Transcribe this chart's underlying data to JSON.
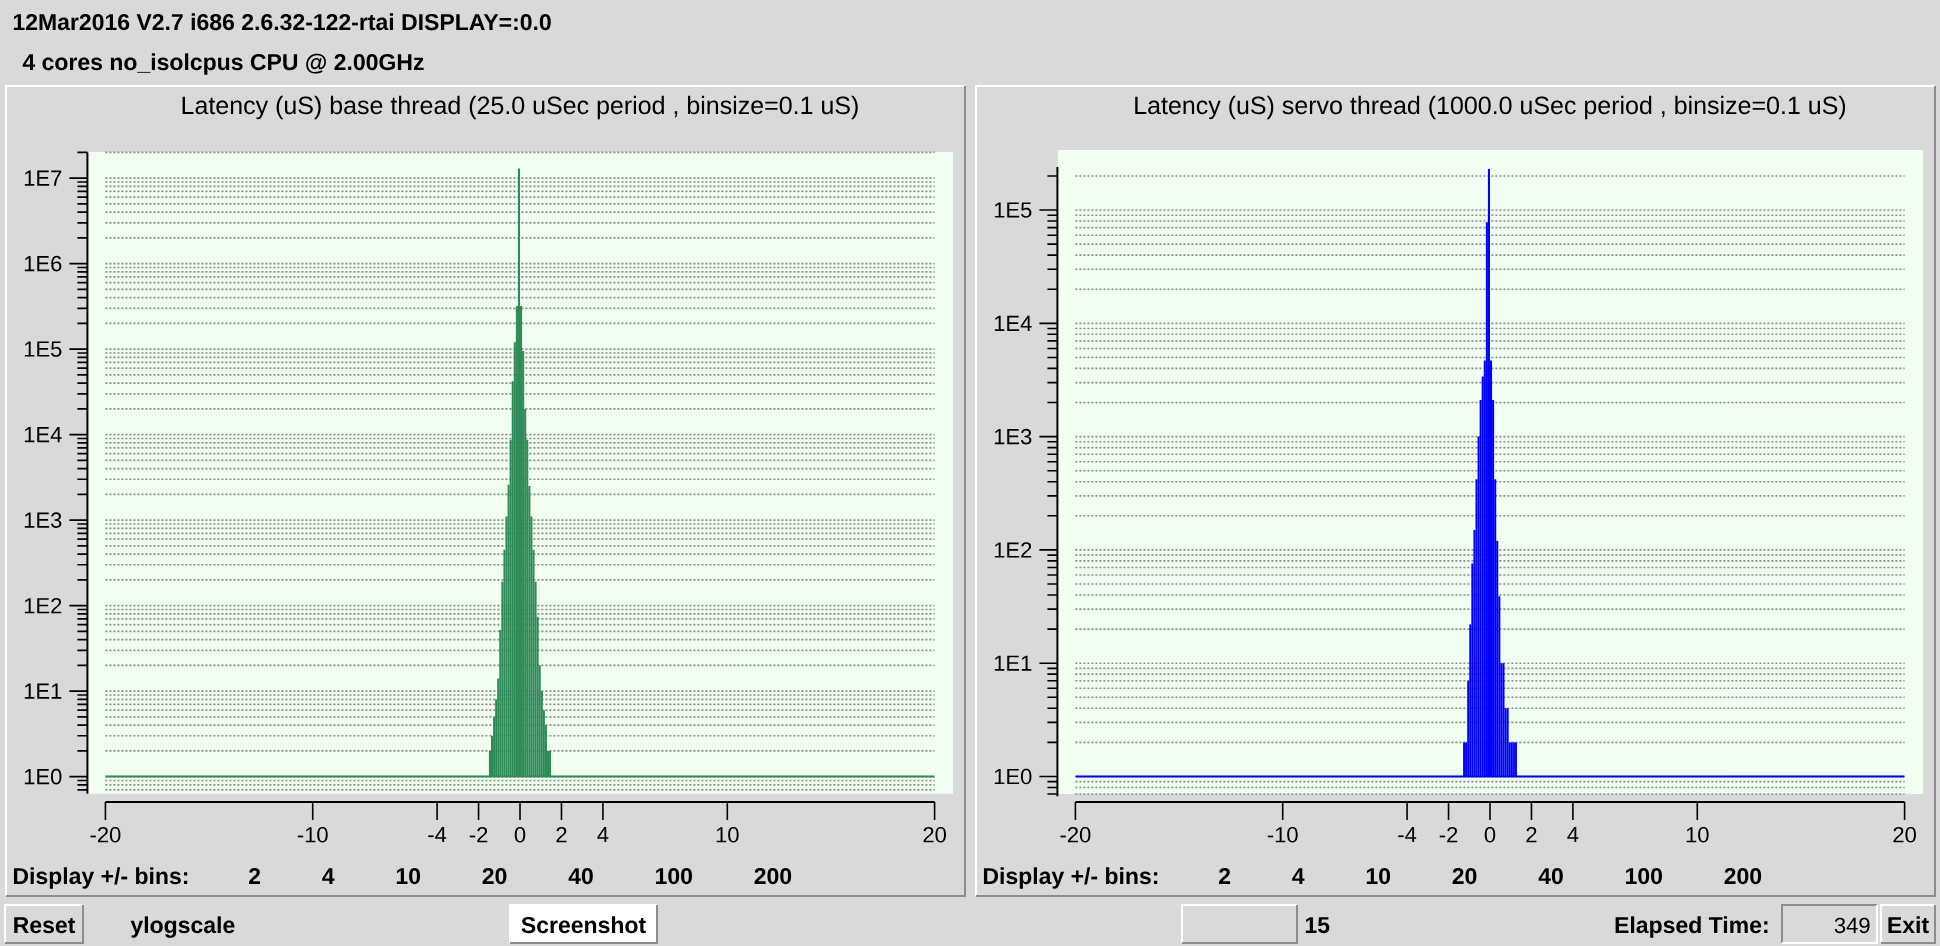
{
  "chart_data": [
    {
      "type": "other",
      "title": "12Mar2016 V2.7 i686 2.6.32-122-rtai DISPLAY=:0.0",
      "subtitle": "4 cores no_isolcpus CPU @ 2.00GHz"
    },
    {
      "type": "histogram",
      "title": "Latency (uS) base thread (25.0 uSec period , binsize=0.1 uS)",
      "color": "#2e8b57",
      "log": "y",
      "grid": "y",
      "bins": [
        -1.5,
        -1.4,
        -1.3,
        -1.2,
        -1.1,
        -1.0,
        -0.9,
        -0.8,
        -0.7,
        -0.6,
        -0.5,
        -0.4,
        -0.3,
        -0.2,
        -0.1,
        0,
        0.1,
        0.2,
        0.3,
        0.4,
        0.5,
        0.6,
        0.7,
        0.8,
        0.9,
        1.0,
        1.1,
        1.2,
        1.3,
        1.4,
        1.5
      ],
      "values": [
        2,
        3,
        5,
        8,
        14,
        52,
        190,
        450,
        1100,
        2600,
        8700,
        42000,
        120000,
        320000,
        13000000,
        320000,
        95000,
        20000,
        8700,
        2500,
        1100,
        450,
        190,
        74,
        20,
        10,
        6,
        4,
        2,
        2
      ],
      "ref_lines": [
        {
          "axis": "y",
          "value": 1,
          "color": "#2e8b57"
        }
      ],
      "xlim": [
        -20,
        20
      ],
      "xticks": [
        -20,
        -10,
        -4,
        -2,
        0,
        2,
        4,
        10,
        20
      ],
      "ylim": [
        0.63,
        20000000.0
      ],
      "yticks": [
        {
          "value": 1,
          "label": "1E0"
        },
        {
          "value": 10,
          "label": "1E1"
        },
        {
          "value": 100,
          "label": "1E2"
        },
        {
          "value": 1000,
          "label": "1E3"
        },
        {
          "value": 10000,
          "label": "1E4"
        },
        {
          "value": 100000,
          "label": "1E5"
        },
        {
          "value": 1000000,
          "label": "1E6"
        },
        {
          "value": 10000000,
          "label": "1E7"
        }
      ],
      "annotations": [
        "Display +/- bins:",
        "2",
        "4",
        "10",
        "20",
        "40",
        "100",
        "200"
      ]
    },
    {
      "type": "histogram",
      "title": "Latency (uS) servo thread (1000.0 uSec period , binsize=0.1 uS)",
      "color": "#0000ff",
      "log": "y",
      "grid": "y",
      "bins": [
        -1.3,
        -1.2,
        -1.1,
        -1.0,
        -0.9,
        -0.8,
        -0.7,
        -0.6,
        -0.5,
        -0.4,
        -0.3,
        -0.2,
        -0.1,
        0,
        0.1,
        0.2,
        0.3,
        0.4,
        0.5,
        0.6,
        0.7,
        0.8,
        0.9,
        1.0,
        1.1,
        1.2,
        1.3
      ],
      "values": [
        2,
        2,
        7,
        22,
        76,
        150,
        420,
        1000,
        2100,
        3400,
        4700,
        78000,
        230000,
        4700,
        2100,
        420,
        120,
        39,
        10,
        10,
        4,
        4,
        2,
        2,
        2,
        2
      ],
      "ref_lines": [
        {
          "axis": "y",
          "value": 1,
          "color": "#0000ff"
        }
      ],
      "xlim": [
        -20,
        20
      ],
      "xticks": [
        -20,
        -10,
        -4,
        -2,
        0,
        2,
        4,
        10,
        20
      ],
      "ylim": [
        0.67,
        240000.0
      ],
      "yticks": [
        {
          "value": 1,
          "label": "1E0"
        },
        {
          "value": 10,
          "label": "1E1"
        },
        {
          "value": 100,
          "label": "1E2"
        },
        {
          "value": 1000,
          "label": "1E3"
        },
        {
          "value": 10000,
          "label": "1E4"
        },
        {
          "value": 100000,
          "label": "1E5"
        }
      ],
      "annotations": [
        "Display +/- bins:",
        "2",
        "4",
        "10",
        "20",
        "40",
        "100",
        "200"
      ]
    },
    {
      "type": "other",
      "annotations": [
        "Reset",
        "ylogscale",
        "Screenshot",
        "15",
        "Elapsed Time:",
        "349",
        "Exit"
      ]
    }
  ]
}
